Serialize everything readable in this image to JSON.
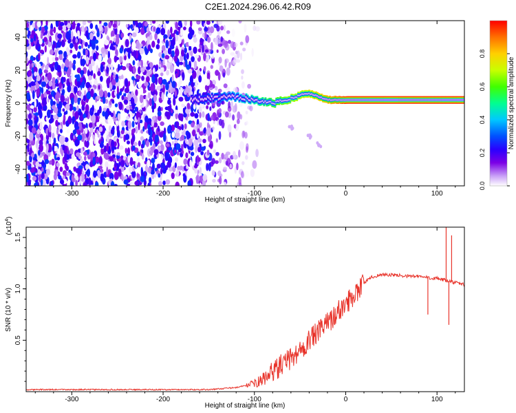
{
  "figure_title": "C2E1.2024.296.06.42.R09",
  "chart_data": [
    {
      "type": "heatmap",
      "title": "C2E1.2024.296.06.42.R09",
      "xlabel": "Height of straight line (km)",
      "ylabel": "Frequency (Hz)",
      "xlim": [
        -350,
        130
      ],
      "ylim": [
        -50,
        50
      ],
      "x_ticks": [
        -300,
        -200,
        -100,
        0,
        100
      ],
      "y_ticks": [
        -40,
        -20,
        0,
        20,
        40
      ],
      "grid": false,
      "colorbar": {
        "label": "Normalized spectral amplitude",
        "range": [
          0,
          1
        ],
        "ticks": [
          "0.0",
          "0.2",
          "0.4",
          "0.6",
          "0.8"
        ],
        "colormap": [
          "#ffffff",
          "#c9a0f7",
          "#7b00e6",
          "#2a00ff",
          "#0050ff",
          "#00c8ff",
          "#00ff90",
          "#40ff00",
          "#c8ff00",
          "#ffd000",
          "#ff7000",
          "#ff0000"
        ]
      },
      "noise_region": {
        "x_range": [
          -350,
          -110
        ],
        "y_range": [
          -50,
          50
        ],
        "amplitude_range": [
          0.0,
          0.35
        ]
      },
      "signal_trace": [
        {
          "x": -170,
          "y": 2
        },
        {
          "x": -150,
          "y": 3
        },
        {
          "x": -120,
          "y": 4
        },
        {
          "x": -100,
          "y": 2
        },
        {
          "x": -80,
          "y": 0
        },
        {
          "x": -60,
          "y": 3
        },
        {
          "x": -45,
          "y": 6
        },
        {
          "x": -35,
          "y": 5
        },
        {
          "x": -20,
          "y": 2
        },
        {
          "x": 0,
          "y": 2
        },
        {
          "x": 50,
          "y": 2
        },
        {
          "x": 100,
          "y": 2
        },
        {
          "x": 130,
          "y": 2
        }
      ],
      "signal_amplitude": [
        {
          "x": -170,
          "a": 0.3
        },
        {
          "x": -120,
          "a": 0.45
        },
        {
          "x": -60,
          "a": 0.7
        },
        {
          "x": -20,
          "a": 0.85
        },
        {
          "x": 0,
          "a": 0.95
        },
        {
          "x": 130,
          "a": 0.95
        }
      ],
      "faint_branch": [
        {
          "x": -60,
          "y": -15
        },
        {
          "x": -40,
          "y": -20
        },
        {
          "x": -30,
          "y": -25
        }
      ]
    },
    {
      "type": "line",
      "xlabel": "Height of straight line (km)",
      "ylabel": "SNR (10 * v/v)",
      "y_multiplier": "(x10⁴)",
      "y_multiplier_parts": {
        "base": "(x10",
        "exponent": "4",
        "close": ")"
      },
      "xlim": [
        -350,
        130
      ],
      "ylim": [
        0,
        1.6
      ],
      "x_ticks": [
        -300,
        -200,
        -100,
        0,
        100
      ],
      "y_ticks": [
        "0.5",
        "1.0",
        "1.5"
      ],
      "color": "#e8332a",
      "series": [
        {
          "x": [
            -350,
            -250,
            -150,
            -120,
            -100,
            -90,
            -80,
            -70,
            -60,
            -50,
            -40,
            -30,
            -20,
            -10,
            0,
            10,
            20,
            30,
            40,
            60,
            80,
            90,
            100,
            110,
            120,
            130
          ],
          "values": [
            0.02,
            0.02,
            0.02,
            0.04,
            0.08,
            0.12,
            0.2,
            0.26,
            0.32,
            0.4,
            0.5,
            0.58,
            0.67,
            0.76,
            0.85,
            0.96,
            1.06,
            1.12,
            1.14,
            1.13,
            1.12,
            1.11,
            1.1,
            1.08,
            1.06,
            1.04
          ]
        }
      ],
      "spikes": [
        {
          "x": 90,
          "y": 0.75
        },
        {
          "x": 110,
          "y": 1.6
        },
        {
          "x": 113,
          "y": 0.65
        },
        {
          "x": 116,
          "y": 1.52
        }
      ]
    }
  ]
}
